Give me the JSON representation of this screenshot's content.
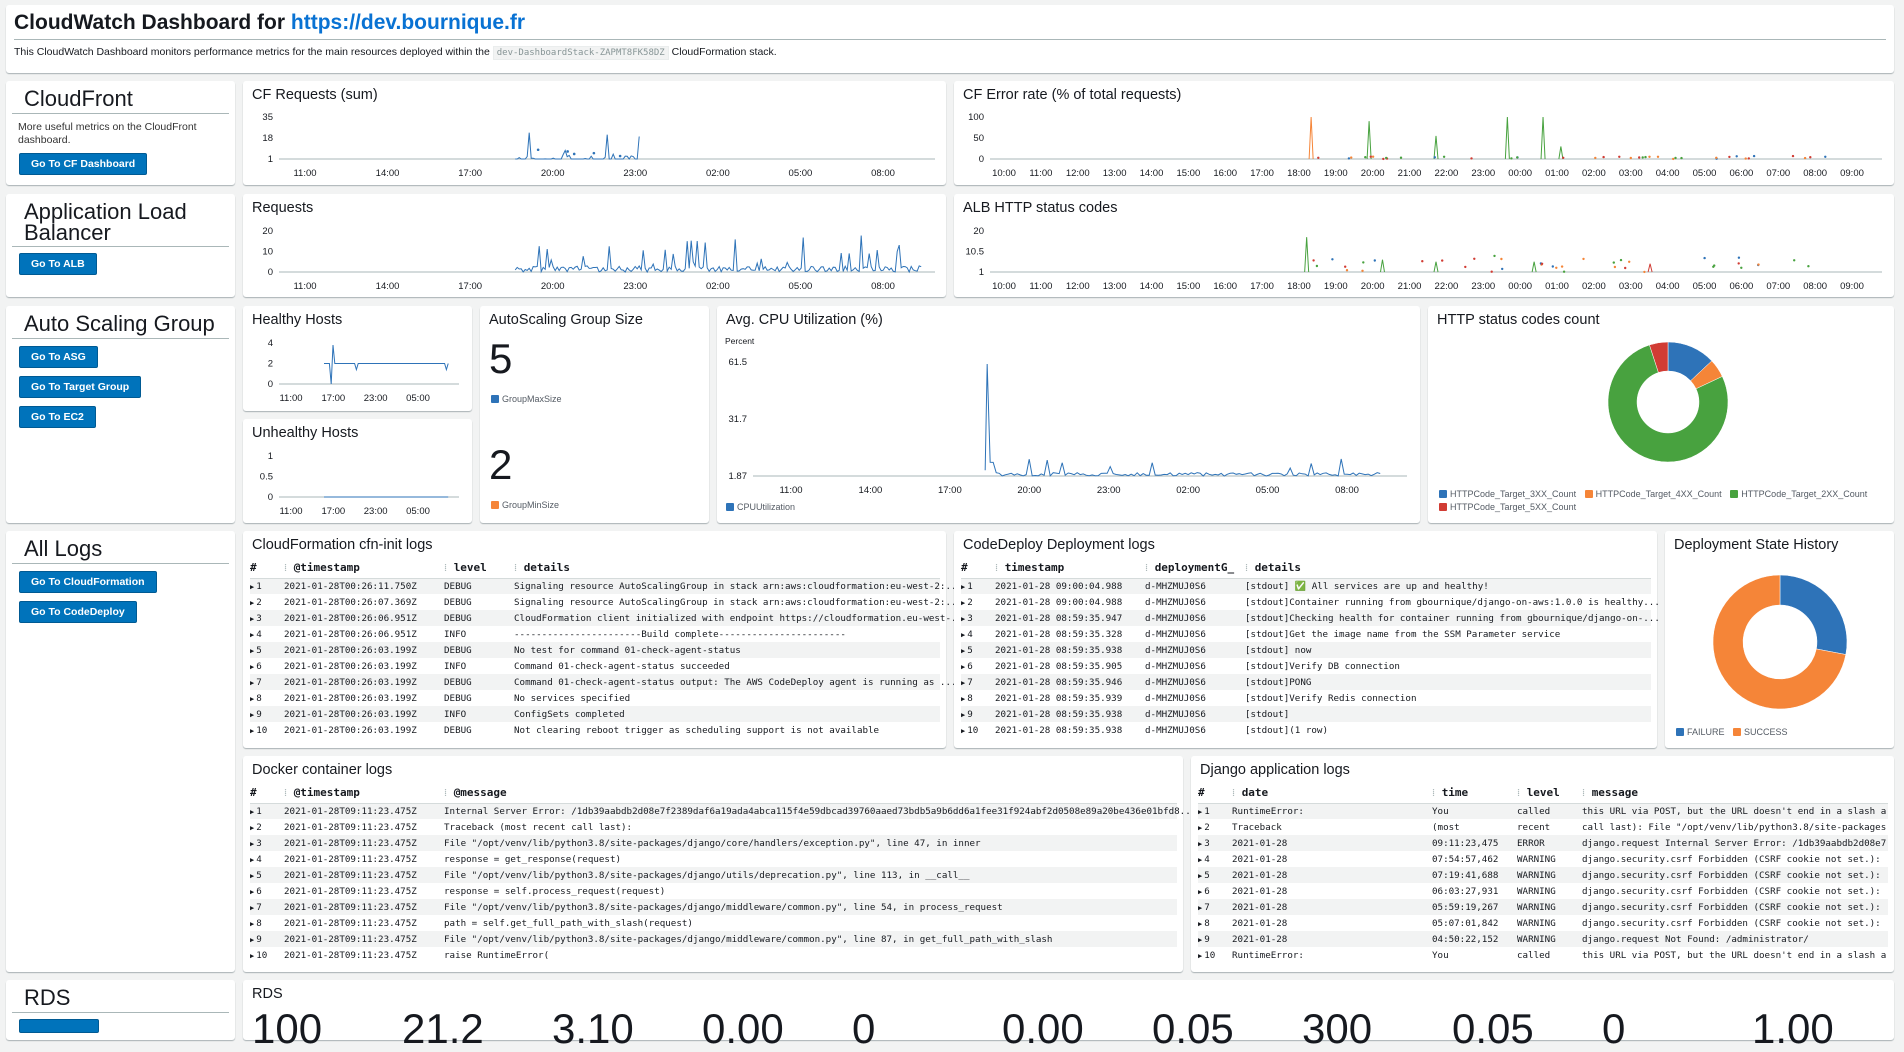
{
  "header": {
    "title_prefix": "CloudWatch Dashboard for",
    "title_link": "https://dev.bournique.fr",
    "desc_before": "This CloudWatch Dashboard monitors performance metrics for the main resources deployed within the",
    "stack_name": "dev-DashboardStack-ZAPMT8FK58DZ",
    "desc_after": "CloudFormation stack."
  },
  "sections": {
    "cloudfront": {
      "title": "CloudFront",
      "text": "More useful metrics on the CloudFront dashboard.",
      "button": "Go To CF Dashboard"
    },
    "alb": {
      "title": "Application Load Balancer",
      "button": "Go To ALB"
    },
    "asg": {
      "title": "Auto Scaling Group",
      "buttons": [
        "Go To ASG",
        "Go To Target Group",
        "Go To EC2"
      ]
    },
    "logs": {
      "title": "All Logs",
      "buttons": [
        "Go To CloudFormation",
        "Go To CodeDeploy"
      ]
    },
    "rds": {
      "title": "RDS"
    }
  },
  "widgets": {
    "cf_requests": "CF Requests (sum)",
    "cf_error_rate": "CF Error rate (% of total requests)",
    "requests": "Requests",
    "alb_http": "ALB HTTP status codes",
    "healthy": "Healthy Hosts",
    "unhealthy": "Unhealthy Hosts",
    "asg_size": "AutoScaling Group Size",
    "cpu": "Avg. CPU Utilization (%)",
    "http_count": "HTTP status codes count",
    "cfn_logs": "CloudFormation cfn-init logs",
    "codedeploy_logs": "CodeDeploy Deployment logs",
    "deploy_history": "Deployment State History",
    "docker_logs": "Docker container logs",
    "django_logs": "Django application logs",
    "rds": "RDS"
  },
  "asg": {
    "max_value": "5",
    "max_label": "GroupMaxSize",
    "min_value": "2",
    "min_label": "GroupMinSize"
  },
  "colors": {
    "blue": "#2e73b8",
    "orange": "#f58538",
    "green": "#48a23f",
    "red": "#d13c34",
    "button": "#0073bb",
    "link": "#0972d3"
  },
  "chart_data": [
    {
      "id": "cf_requests",
      "type": "line",
      "x_ticks": [
        "11:00",
        "14:00",
        "17:00",
        "20:00",
        "23:00",
        "02:00",
        "05:00",
        "08:00"
      ],
      "y_ticks": [
        "35",
        "18",
        "1"
      ]
    },
    {
      "id": "cf_error_rate",
      "type": "line",
      "x_ticks": [
        "10:00",
        "11:00",
        "12:00",
        "13:00",
        "14:00",
        "15:00",
        "16:00",
        "17:00",
        "18:00",
        "19:00",
        "20:00",
        "21:00",
        "22:00",
        "23:00",
        "00:00",
        "01:00",
        "02:00",
        "03:00",
        "04:00",
        "05:00",
        "06:00",
        "07:00",
        "08:00",
        "09:00"
      ],
      "y_ticks": [
        "100",
        "50",
        "0"
      ]
    },
    {
      "id": "requests",
      "type": "line",
      "x_ticks": [
        "11:00",
        "14:00",
        "17:00",
        "20:00",
        "23:00",
        "02:00",
        "05:00",
        "08:00"
      ],
      "y_ticks": [
        "20",
        "10",
        "0"
      ]
    },
    {
      "id": "alb_http",
      "type": "line",
      "x_ticks": [
        "10:00",
        "11:00",
        "12:00",
        "13:00",
        "14:00",
        "15:00",
        "16:00",
        "17:00",
        "18:00",
        "19:00",
        "20:00",
        "21:00",
        "22:00",
        "23:00",
        "00:00",
        "01:00",
        "02:00",
        "03:00",
        "04:00",
        "05:00",
        "06:00",
        "07:00",
        "08:00",
        "09:00"
      ],
      "y_ticks": [
        "20",
        "10.5",
        "1"
      ]
    },
    {
      "id": "healthy",
      "type": "line",
      "x_ticks": [
        "11:00",
        "17:00",
        "23:00",
        "05:00"
      ],
      "y_ticks": [
        "4",
        "2",
        "0"
      ]
    },
    {
      "id": "unhealthy",
      "type": "line",
      "x_ticks": [
        "11:00",
        "17:00",
        "23:00",
        "05:00"
      ],
      "y_ticks": [
        "1",
        "0.5",
        "0"
      ]
    },
    {
      "id": "cpu",
      "type": "line",
      "unit_label": "Percent",
      "x_ticks": [
        "11:00",
        "14:00",
        "17:00",
        "20:00",
        "23:00",
        "02:00",
        "05:00",
        "08:00"
      ],
      "y_ticks": [
        "61.5",
        "31.7",
        "1.87"
      ],
      "legend": [
        "CPUUtilization"
      ]
    },
    {
      "id": "http_count",
      "type": "pie",
      "legend": [
        "HTTPCode_Target_3XX_Count",
        "HTTPCode_Target_4XX_Count",
        "HTTPCode_Target_2XX_Count",
        "HTTPCode_Target_5XX_Count"
      ],
      "values": [
        13,
        5,
        77,
        5
      ]
    },
    {
      "id": "deploy_history",
      "type": "pie",
      "legend": [
        "FAILURE",
        "SUCCESS"
      ],
      "values": [
        28,
        72
      ]
    }
  ],
  "logs": {
    "cfn": {
      "cols": [
        "#",
        "@timestamp",
        "level",
        "details"
      ],
      "rows": [
        [
          "1",
          "2021-01-28T00:26:11.750Z",
          "DEBUG",
          "Signaling resource AutoScalingGroup in stack arn:aws:cloudformation:eu-west-2:..."
        ],
        [
          "2",
          "2021-01-28T00:26:07.369Z",
          "DEBUG",
          "Signaling resource AutoScalingGroup in stack arn:aws:cloudformation:eu-west-2:..."
        ],
        [
          "3",
          "2021-01-28T00:26:06.951Z",
          "DEBUG",
          "CloudFormation client initialized with endpoint https://cloudformation.eu-west-..."
        ],
        [
          "4",
          "2021-01-28T00:26:06.951Z",
          "INFO",
          "-----------------------Build complete-----------------------"
        ],
        [
          "5",
          "2021-01-28T00:26:03.199Z",
          "DEBUG",
          "No test for command 01-check-agent-status"
        ],
        [
          "6",
          "2021-01-28T00:26:03.199Z",
          "INFO",
          "Command 01-check-agent-status succeeded"
        ],
        [
          "7",
          "2021-01-28T00:26:03.199Z",
          "DEBUG",
          "Command 01-check-agent-status output: The AWS CodeDeploy agent is running as ..."
        ],
        [
          "8",
          "2021-01-28T00:26:03.199Z",
          "DEBUG",
          "No services specified"
        ],
        [
          "9",
          "2021-01-28T00:26:03.199Z",
          "INFO",
          "ConfigSets completed"
        ],
        [
          "10",
          "2021-01-28T00:26:03.199Z",
          "DEBUG",
          "Not clearing reboot trigger as scheduling support is not available"
        ]
      ]
    },
    "codedeploy": {
      "cols": [
        "#",
        "timestamp",
        "deploymentG_",
        "details"
      ],
      "rows": [
        [
          "1",
          "2021-01-28 09:00:04.988",
          "d-MHZMUJ0S6",
          "[stdout] ✅ All services are up and healthy!"
        ],
        [
          "2",
          "2021-01-28 09:00:04.988",
          "d-MHZMUJ0S6",
          "[stdout]Container running from gbournique/django-on-aws:1.0.0 is healthy..."
        ],
        [
          "3",
          "2021-01-28 08:59:35.947",
          "d-MHZMUJ0S6",
          "[stdout]Checking health for container running from gbournique/django-on-..."
        ],
        [
          "4",
          "2021-01-28 08:59:35.328",
          "d-MHZMUJ0S6",
          "[stdout]Get the image name from the SSM Parameter service"
        ],
        [
          "5",
          "2021-01-28 08:59:35.938",
          "d-MHZMUJ0S6",
          "[stdout] now"
        ],
        [
          "6",
          "2021-01-28 08:59:35.905",
          "d-MHZMUJ0S6",
          "[stdout]Verify DB connection"
        ],
        [
          "7",
          "2021-01-28 08:59:35.946",
          "d-MHZMUJ0S6",
          "[stdout]PONG"
        ],
        [
          "8",
          "2021-01-28 08:59:35.939",
          "d-MHZMUJ0S6",
          "[stdout]Verify Redis connection"
        ],
        [
          "9",
          "2021-01-28 08:59:35.938",
          "d-MHZMUJ0S6",
          "[stdout]"
        ],
        [
          "10",
          "2021-01-28 08:59:35.938",
          "d-MHZMUJ0S6",
          "[stdout](1 row)"
        ]
      ]
    },
    "docker": {
      "cols": [
        "#",
        "@timestamp",
        "@message"
      ],
      "rows": [
        [
          "1",
          "2021-01-28T09:11:23.475Z",
          "Internal Server Error: /1db39aabdb2d08e7f2389daf6a19ada4abca115f4e59dbcad39760aaed73bdb5a9b6dd6a1fee31f924abf2d0508e89a20be436e01bfd8..."
        ],
        [
          "2",
          "2021-01-28T09:11:23.475Z",
          "Traceback (most recent call last):"
        ],
        [
          "3",
          "2021-01-28T09:11:23.475Z",
          "File \"/opt/venv/lib/python3.8/site-packages/django/core/handlers/exception.py\", line 47, in inner"
        ],
        [
          "4",
          "2021-01-28T09:11:23.475Z",
          "response = get_response(request)"
        ],
        [
          "5",
          "2021-01-28T09:11:23.475Z",
          "File \"/opt/venv/lib/python3.8/site-packages/django/utils/deprecation.py\", line 113, in __call__"
        ],
        [
          "6",
          "2021-01-28T09:11:23.475Z",
          "response = self.process_request(request)"
        ],
        [
          "7",
          "2021-01-28T09:11:23.475Z",
          "File \"/opt/venv/lib/python3.8/site-packages/django/middleware/common.py\", line 54, in process_request"
        ],
        [
          "8",
          "2021-01-28T09:11:23.475Z",
          "path = self.get_full_path_with_slash(request)"
        ],
        [
          "9",
          "2021-01-28T09:11:23.475Z",
          "File \"/opt/venv/lib/python3.8/site-packages/django/middleware/common.py\", line 87, in get_full_path_with_slash"
        ],
        [
          "10",
          "2021-01-28T09:11:23.475Z",
          "raise RuntimeError("
        ]
      ]
    },
    "django": {
      "cols": [
        "#",
        "date",
        "time",
        "level",
        "message"
      ],
      "rows": [
        [
          "1",
          "RuntimeError:",
          "You",
          "called",
          "this URL via POST, but the URL doesn't end in a slash a"
        ],
        [
          "2",
          "Traceback",
          "(most",
          "recent",
          "call last): File \"/opt/venv/lib/python3.8/site-packages"
        ],
        [
          "3",
          "2021-01-28",
          "09:11:23,475",
          "ERROR",
          "django.request Internal Server Error: /1db39aabdb2d08e7"
        ],
        [
          "4",
          "2021-01-28",
          "07:54:57,462",
          "WARNING",
          "django.security.csrf Forbidden (CSRF cookie not set.):"
        ],
        [
          "5",
          "2021-01-28",
          "07:19:41,688",
          "WARNING",
          "django.security.csrf Forbidden (CSRF cookie not set.):"
        ],
        [
          "6",
          "2021-01-28",
          "06:03:27,931",
          "WARNING",
          "django.security.csrf Forbidden (CSRF cookie not set.):"
        ],
        [
          "7",
          "2021-01-28",
          "05:59:19,267",
          "WARNING",
          "django.security.csrf Forbidden (CSRF cookie not set.):"
        ],
        [
          "8",
          "2021-01-28",
          "05:07:01,842",
          "WARNING",
          "django.security.csrf Forbidden (CSRF cookie not set.):"
        ],
        [
          "9",
          "2021-01-28",
          "04:50:22,152",
          "WARNING",
          "django.request Not Found: /administrator/"
        ],
        [
          "10",
          "RuntimeError:",
          "You",
          "called",
          "this URL via POST, but the URL doesn't end in a slash a"
        ]
      ]
    }
  },
  "rds_values": [
    "100",
    "21.2",
    "3.10",
    "0.00",
    "0",
    "0.00",
    "0.05",
    "300",
    "0.05",
    "0",
    "1.00"
  ]
}
